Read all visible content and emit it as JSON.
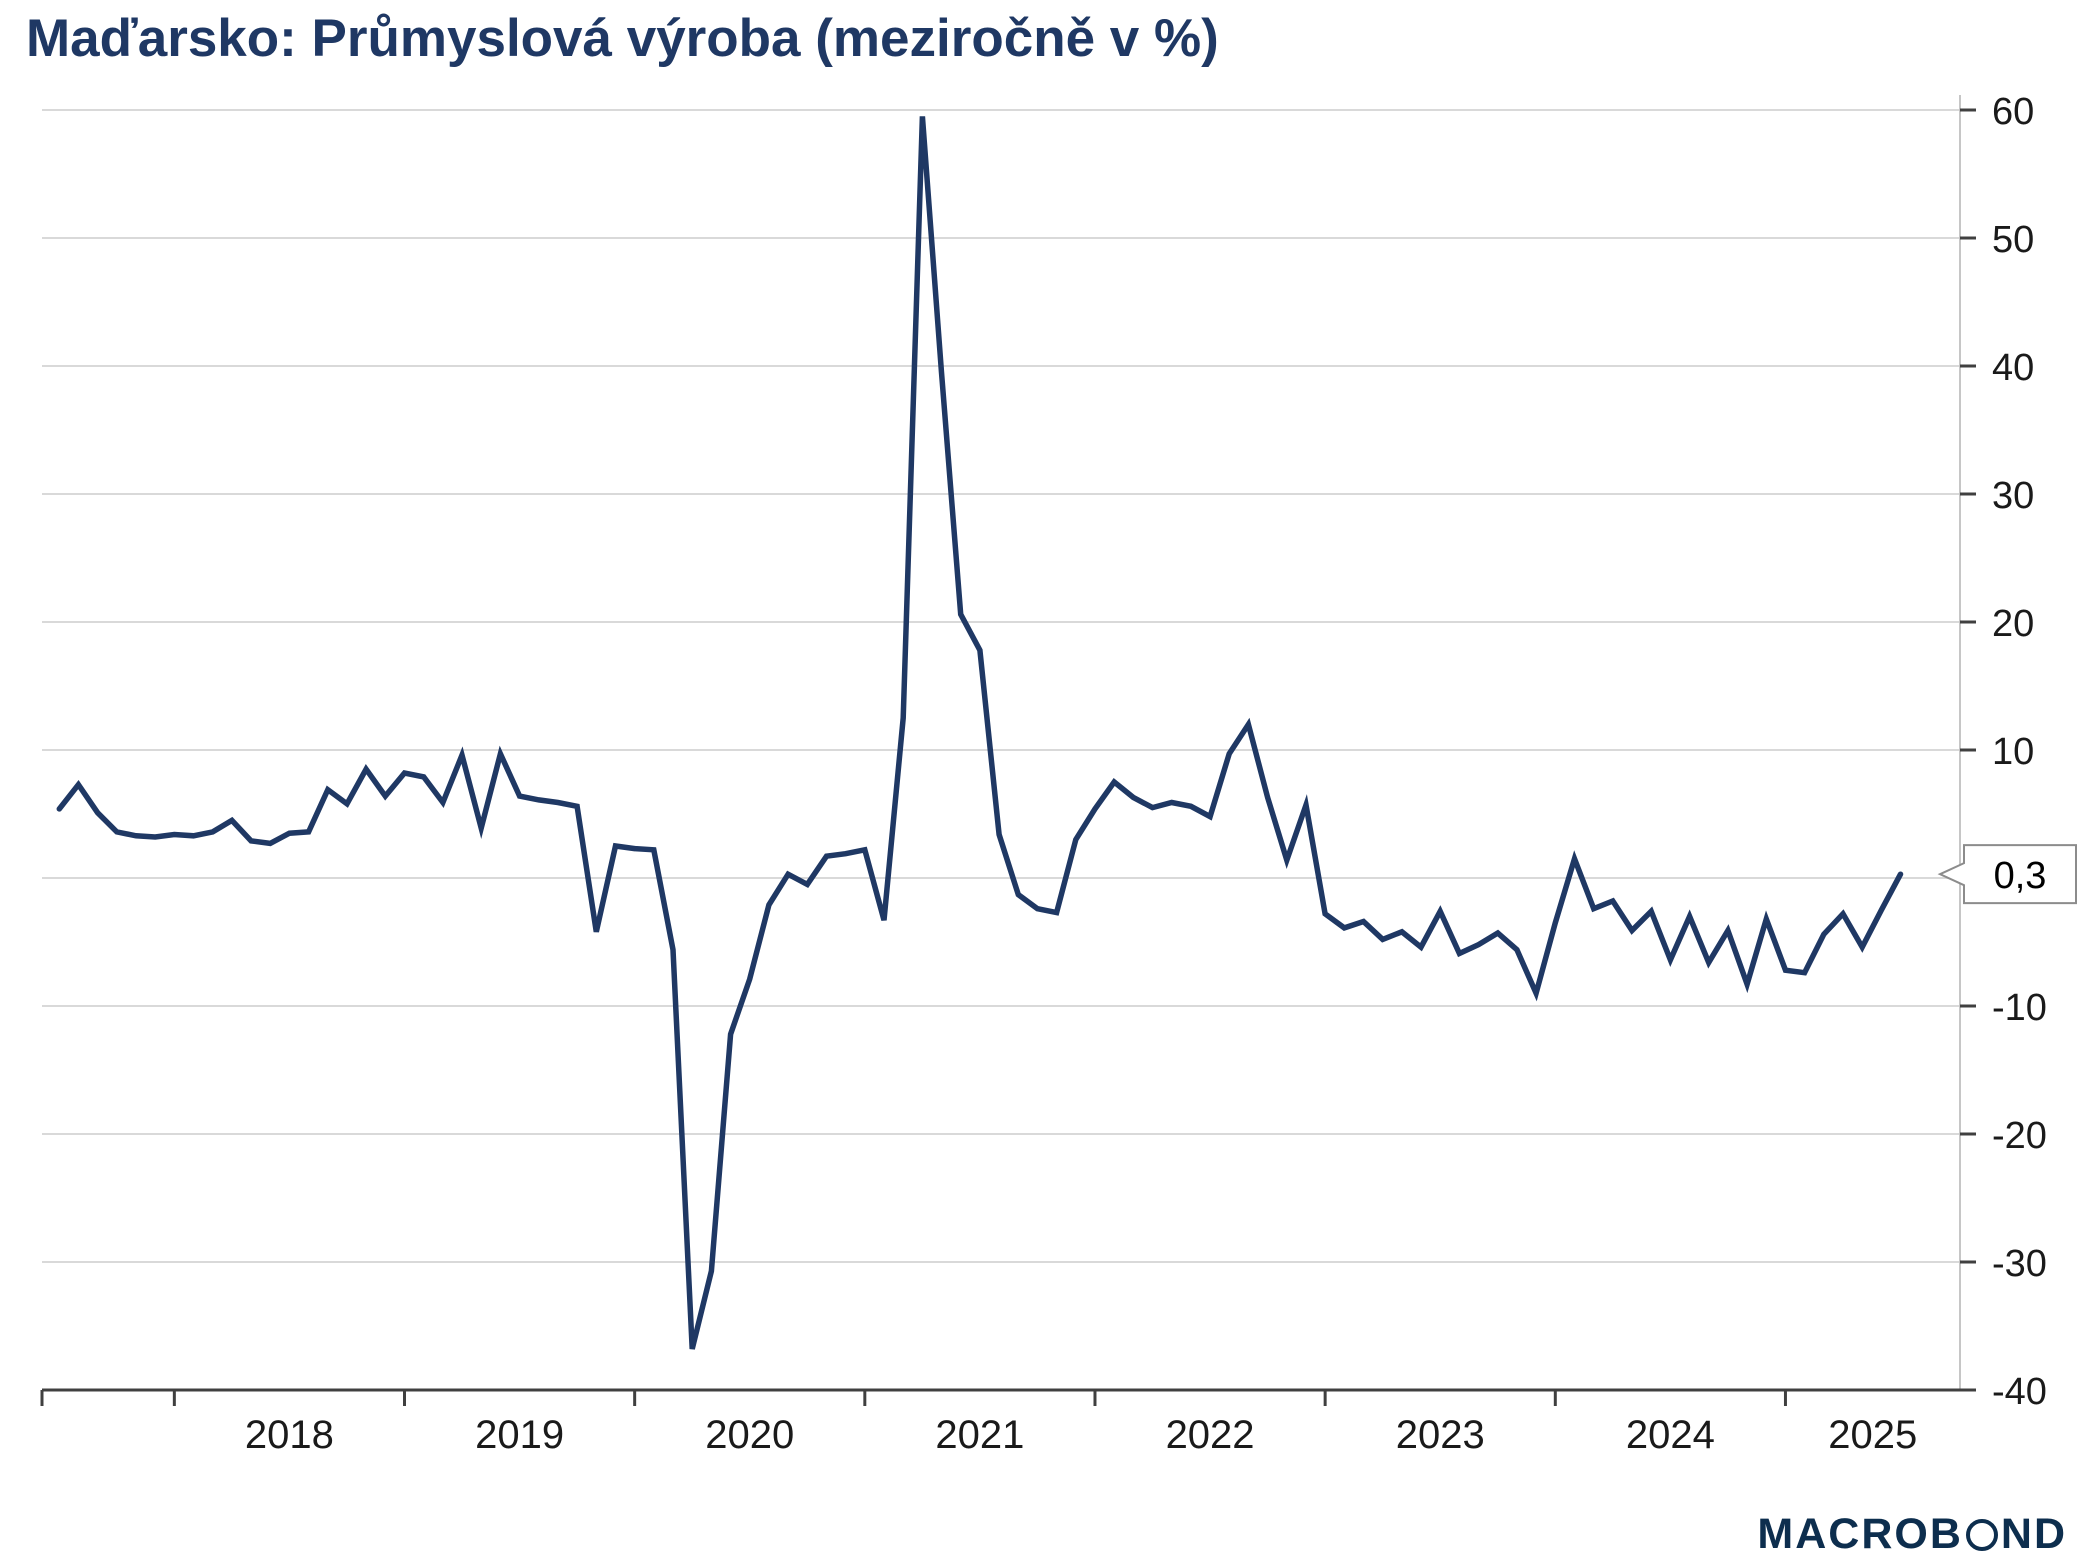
{
  "chart_data": {
    "type": "line",
    "title": "Maďarsko: Průmyslová výroba (meziročně v %)",
    "line_color": "#1f3864",
    "grid": true,
    "legend": "none",
    "ylim": [
      -40,
      60
    ],
    "y_ticks": [
      {
        "v": 60,
        "label": "60"
      },
      {
        "v": 50,
        "label": "50"
      },
      {
        "v": 40,
        "label": "40"
      },
      {
        "v": 30,
        "label": "30"
      },
      {
        "v": 20,
        "label": "20"
      },
      {
        "v": 10,
        "label": "10"
      },
      {
        "v": 0,
        "label": "0"
      },
      {
        "v": -10,
        "label": "-10"
      },
      {
        "v": -20,
        "label": "-20"
      },
      {
        "v": -30,
        "label": "-30"
      },
      {
        "v": -40,
        "label": "-40"
      }
    ],
    "x_year_labels": [
      {
        "year": 2018,
        "label": "2018"
      },
      {
        "year": 2019,
        "label": "2019"
      },
      {
        "year": 2020,
        "label": "2020"
      },
      {
        "year": 2021,
        "label": "2021"
      },
      {
        "year": 2022,
        "label": "2022"
      },
      {
        "year": 2023,
        "label": "2023"
      },
      {
        "year": 2024,
        "label": "2024"
      },
      {
        "year": 2025,
        "label": "2025"
      }
    ],
    "points": [
      [
        "2017-07",
        5.4
      ],
      [
        "2017-08",
        7.3
      ],
      [
        "2017-09",
        5.1
      ],
      [
        "2017-10",
        3.6
      ],
      [
        "2017-11",
        3.3
      ],
      [
        "2017-12",
        3.2
      ],
      [
        "2018-01",
        3.4
      ],
      [
        "2018-02",
        3.3
      ],
      [
        "2018-03",
        3.6
      ],
      [
        "2018-04",
        4.5
      ],
      [
        "2018-05",
        2.9
      ],
      [
        "2018-06",
        2.7
      ],
      [
        "2018-07",
        3.5
      ],
      [
        "2018-08",
        3.6
      ],
      [
        "2018-09",
        6.9
      ],
      [
        "2018-10",
        5.8
      ],
      [
        "2018-11",
        8.5
      ],
      [
        "2018-12",
        6.4
      ],
      [
        "2019-01",
        8.2
      ],
      [
        "2019-02",
        7.9
      ],
      [
        "2019-03",
        5.9
      ],
      [
        "2019-04",
        9.6
      ],
      [
        "2019-05",
        3.9
      ],
      [
        "2019-06",
        9.7
      ],
      [
        "2019-07",
        6.4
      ],
      [
        "2019-08",
        6.1
      ],
      [
        "2019-09",
        5.9
      ],
      [
        "2019-10",
        5.6
      ],
      [
        "2019-11",
        -4.2
      ],
      [
        "2019-12",
        2.5
      ],
      [
        "2020-01",
        2.3
      ],
      [
        "2020-02",
        2.2
      ],
      [
        "2020-03",
        -5.6
      ],
      [
        "2020-04",
        -36.8
      ],
      [
        "2020-05",
        -30.7
      ],
      [
        "2020-06",
        -12.2
      ],
      [
        "2020-07",
        -7.9
      ],
      [
        "2020-08",
        -2.1
      ],
      [
        "2020-09",
        0.3
      ],
      [
        "2020-10",
        -0.5
      ],
      [
        "2020-11",
        1.7
      ],
      [
        "2020-12",
        1.9
      ],
      [
        "2021-01",
        2.2
      ],
      [
        "2021-02",
        -3.3
      ],
      [
        "2021-03",
        12.5
      ],
      [
        "2021-04",
        59.5
      ],
      [
        "2021-05",
        39.5
      ],
      [
        "2021-06",
        20.6
      ],
      [
        "2021-07",
        17.8
      ],
      [
        "2021-08",
        3.4
      ],
      [
        "2021-09",
        -1.3
      ],
      [
        "2021-10",
        -2.4
      ],
      [
        "2021-11",
        -2.7
      ],
      [
        "2021-12",
        3.0
      ],
      [
        "2022-01",
        5.4
      ],
      [
        "2022-02",
        7.5
      ],
      [
        "2022-03",
        6.3
      ],
      [
        "2022-04",
        5.5
      ],
      [
        "2022-05",
        5.9
      ],
      [
        "2022-06",
        5.6
      ],
      [
        "2022-07",
        4.8
      ],
      [
        "2022-08",
        9.7
      ],
      [
        "2022-09",
        12.0
      ],
      [
        "2022-10",
        6.3
      ],
      [
        "2022-11",
        1.4
      ],
      [
        "2022-12",
        5.7
      ],
      [
        "2023-01",
        -2.8
      ],
      [
        "2023-02",
        -3.9
      ],
      [
        "2023-03",
        -3.4
      ],
      [
        "2023-04",
        -4.8
      ],
      [
        "2023-05",
        -4.2
      ],
      [
        "2023-06",
        -5.4
      ],
      [
        "2023-07",
        -2.6
      ],
      [
        "2023-08",
        -5.9
      ],
      [
        "2023-09",
        -5.2
      ],
      [
        "2023-10",
        -4.3
      ],
      [
        "2023-11",
        -5.6
      ],
      [
        "2023-12",
        -9.0
      ],
      [
        "2024-01",
        -3.5
      ],
      [
        "2024-02",
        1.5
      ],
      [
        "2024-03",
        -2.4
      ],
      [
        "2024-04",
        -1.8
      ],
      [
        "2024-05",
        -4.1
      ],
      [
        "2024-06",
        -2.6
      ],
      [
        "2024-07",
        -6.4
      ],
      [
        "2024-08",
        -3.0
      ],
      [
        "2024-09",
        -6.6
      ],
      [
        "2024-10",
        -4.1
      ],
      [
        "2024-11",
        -8.3
      ],
      [
        "2024-12",
        -3.2
      ],
      [
        "2025-01",
        -7.2
      ],
      [
        "2025-02",
        -7.4
      ],
      [
        "2025-03",
        -4.4
      ],
      [
        "2025-04",
        -2.8
      ],
      [
        "2025-05",
        -5.4
      ],
      [
        "2025-06",
        -2.5
      ],
      [
        "2025-07",
        0.3
      ]
    ],
    "last_value_label": "0,3"
  },
  "branding": {
    "logo_text": "MACROBOND",
    "logo_pre": "MACROB",
    "logo_post": "ND"
  }
}
